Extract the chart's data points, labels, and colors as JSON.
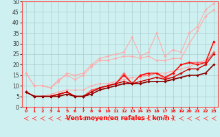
{
  "x": [
    0,
    1,
    2,
    3,
    4,
    5,
    6,
    7,
    8,
    9,
    10,
    11,
    12,
    13,
    14,
    15,
    16,
    17,
    18,
    19,
    20,
    21,
    22,
    23
  ],
  "series": [
    {
      "name": "s1_light",
      "color": "#ffaaaa",
      "lw": 0.8,
      "y": [
        16,
        10,
        10,
        9,
        12,
        16,
        15,
        16,
        20,
        23,
        24,
        25,
        26,
        33,
        24,
        26,
        35,
        24,
        27,
        26,
        35,
        38,
        46,
        49
      ]
    },
    {
      "name": "s2_light",
      "color": "#ffaaaa",
      "lw": 0.8,
      "y": [
        16,
        10,
        10,
        9,
        13,
        15,
        13,
        15,
        19,
        22,
        22,
        23,
        24,
        24,
        23,
        24,
        22,
        22,
        23,
        23,
        30,
        36,
        43,
        46
      ]
    },
    {
      "name": "s3_light",
      "color": "#ffaaaa",
      "lw": 0.8,
      "y": [
        7,
        5,
        5,
        6,
        7,
        8,
        8,
        8,
        10,
        11,
        11,
        12,
        13,
        14,
        14,
        15,
        16,
        16,
        17,
        18,
        19,
        21,
        22,
        30
      ]
    },
    {
      "name": "s4_mid",
      "color": "#ff6666",
      "lw": 1.0,
      "y": [
        7,
        5,
        5,
        5,
        6,
        7,
        5,
        5,
        8,
        9,
        10,
        11,
        16,
        11,
        15,
        15,
        16,
        13,
        16,
        20,
        21,
        21,
        21,
        26
      ]
    },
    {
      "name": "s5_red",
      "color": "#ff0000",
      "lw": 1.0,
      "y": [
        7,
        5,
        5,
        5,
        6,
        7,
        5,
        5,
        7,
        9,
        10,
        11,
        15,
        11,
        15,
        16,
        16,
        14,
        16,
        20,
        21,
        20,
        21,
        31
      ]
    },
    {
      "name": "s6_dark",
      "color": "#cc0000",
      "lw": 1.0,
      "y": [
        7,
        5,
        5,
        5,
        6,
        7,
        5,
        5,
        7,
        9,
        10,
        11,
        12,
        11,
        12,
        13,
        14,
        13,
        14,
        16,
        18,
        18,
        20,
        25
      ]
    },
    {
      "name": "s7_darkest",
      "color": "#880000",
      "lw": 1.2,
      "y": [
        7,
        5,
        5,
        5,
        5,
        6,
        5,
        5,
        6,
        8,
        9,
        10,
        11,
        11,
        11,
        12,
        12,
        12,
        13,
        14,
        15,
        15,
        16,
        20
      ]
    }
  ],
  "xlabel": "Vent moyen/en rafales ( km/h )",
  "xlim_min": -0.5,
  "xlim_max": 23.5,
  "ylim_min": 0,
  "ylim_max": 50,
  "xticks": [
    0,
    1,
    2,
    3,
    4,
    5,
    6,
    7,
    8,
    9,
    10,
    11,
    12,
    13,
    14,
    15,
    16,
    17,
    18,
    19,
    20,
    21,
    22,
    23
  ],
  "yticks": [
    0,
    5,
    10,
    15,
    20,
    25,
    30,
    35,
    40,
    45,
    50
  ],
  "bg_color": "#cff0f0",
  "grid_color": "#aacccc",
  "xlabel_color": "#ff0000",
  "xtick_color": "#ff0000",
  "ytick_color": "#333333",
  "marker": "D",
  "marker_size": 1.8,
  "spine_color": "#ff4444"
}
